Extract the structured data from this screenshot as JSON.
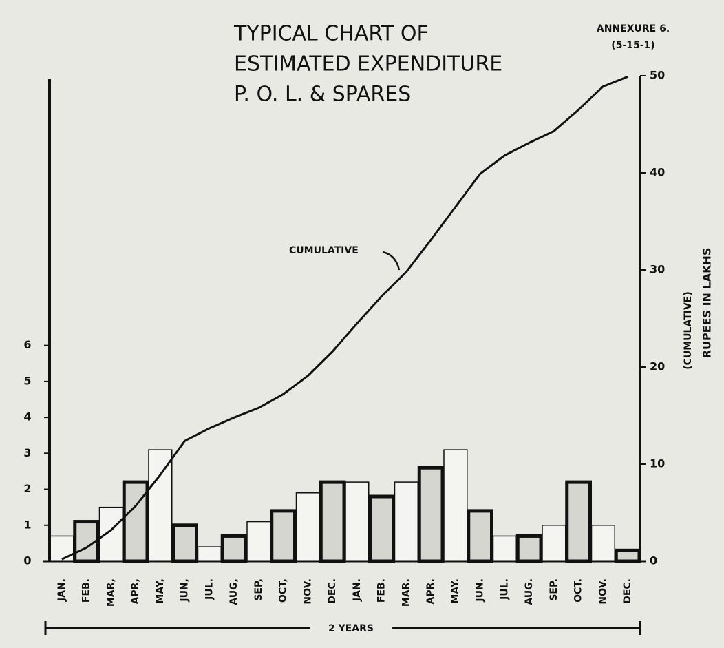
{
  "chart_data": {
    "type": "bar",
    "title_lines": [
      "TYPICAL CHART OF",
      "ESTIMATED EXPENDITURE",
      "P. O. L. & SPARES"
    ],
    "annexure": [
      "ANNEXURE 6.",
      "(5-15-1)"
    ],
    "y2_label": [
      "(CUMULATIVE)",
      "RUPEES IN LAKHS"
    ],
    "span_label": "2 YEARS",
    "categories": [
      "JAN.",
      "FEB.",
      "MAR,",
      "APR,",
      "MAY,",
      "JUN,",
      "JUL.",
      "AUG,",
      "SEP,",
      "OCT,",
      "NOV.",
      "DEC.",
      "JAN.",
      "FEB.",
      "MAR.",
      "APR.",
      "MAY.",
      "JUN.",
      "JUL.",
      "AUG.",
      "SEP.",
      "OCT.",
      "NOV.",
      "DEC."
    ],
    "series": [
      {
        "color": "#f4f4f0",
        "values": [
          0.7,
          1.1,
          1.5,
          2.2,
          3.1,
          1.0,
          0.4,
          0.7,
          1.1,
          1.4,
          1.9,
          2.2,
          2.2,
          1.8,
          2.2,
          2.6,
          3.1,
          1.4,
          0.7,
          0.7,
          1.0,
          2.2,
          1.0,
          0.3
        ]
      },
      {
        "name": "CUMULATIVE",
        "type": "line",
        "axis": "y2",
        "color": "#111111",
        "values": [
          0.2,
          1.4,
          3.2,
          5.7,
          8.9,
          12.4,
          13.7,
          14.8,
          15.8,
          17.2,
          19.1,
          21.6,
          24.5,
          27.3,
          29.8,
          33.1,
          36.5,
          39.9,
          41.8,
          43.1,
          44.3,
          46.5,
          48.9,
          49.9
        ]
      }
    ],
    "ylim": [
      0,
      13.5
    ],
    "yticks": [
      0,
      1,
      2,
      3,
      4,
      5,
      6
    ],
    "y2lim": [
      0,
      50
    ],
    "y2ticks": [
      0,
      10,
      20,
      30,
      40,
      50
    ]
  }
}
